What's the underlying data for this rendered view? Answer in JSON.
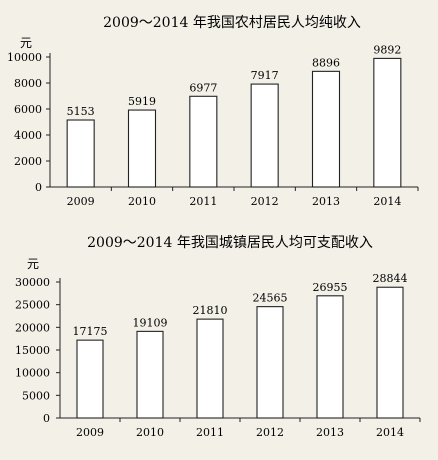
{
  "chart_data": [
    {
      "type": "bar",
      "title": "2009～2014 年我国农村居民人均纯收入",
      "ylabel": "元",
      "xlabel": "",
      "categories": [
        "2009",
        "2010",
        "2011",
        "2012",
        "2013",
        "2014"
      ],
      "values": [
        5153,
        5919,
        6977,
        7917,
        8896,
        9892
      ],
      "ylim": [
        0,
        10000
      ],
      "yticks": [
        "0",
        "2000",
        "4000",
        "6000",
        "8000",
        "10000"
      ],
      "grid": false,
      "legend": "none"
    },
    {
      "type": "bar",
      "title": "2009～2014 年我国城镇居民人均可支配收入",
      "ylabel": "元",
      "xlabel": "",
      "categories": [
        "2009",
        "2010",
        "2011",
        "2012",
        "2013",
        "2014"
      ],
      "values": [
        17175,
        19109,
        21810,
        24565,
        26955,
        28844
      ],
      "ylim": [
        0,
        30000
      ],
      "yticks": [
        "0",
        "5000",
        "10000",
        "15000",
        "20000",
        "25000",
        "30000"
      ],
      "grid": false,
      "legend": "none"
    }
  ]
}
